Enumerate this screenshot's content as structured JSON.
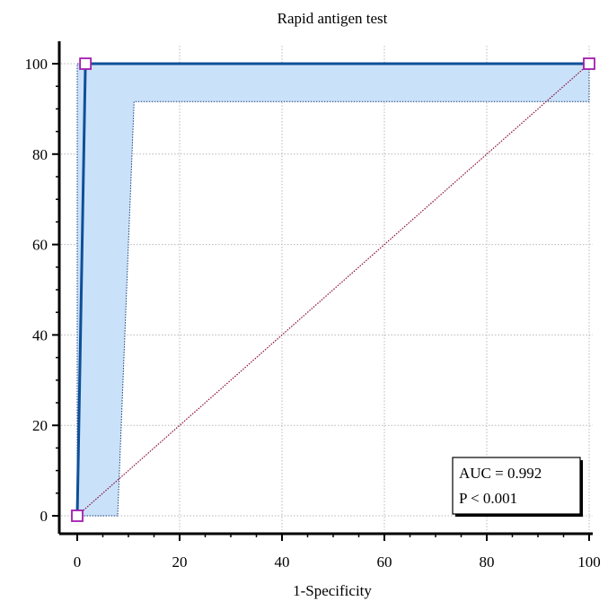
{
  "chart_data": {
    "type": "line",
    "title": "Rapid antigen test",
    "xlabel": "1-Specificity",
    "ylabel": "",
    "xlim": [
      0,
      100
    ],
    "ylim": [
      0,
      100
    ],
    "xticks": [
      0,
      20,
      40,
      60,
      80,
      100
    ],
    "yticks": [
      0,
      20,
      40,
      60,
      80,
      100
    ],
    "grid": true,
    "series": [
      {
        "type": "roc",
        "points": [
          {
            "x": 0,
            "y": 0
          },
          {
            "x": 1.6,
            "y": 100
          },
          {
            "x": 100,
            "y": 100
          }
        ]
      },
      {
        "type": "reference-diagonal",
        "points": [
          {
            "x": 0,
            "y": 0
          },
          {
            "x": 100,
            "y": 100
          }
        ]
      }
    ],
    "confidence_band": {
      "upper": [
        {
          "x": 0,
          "y": 0
        },
        {
          "x": 0,
          "y": 100
        },
        {
          "x": 100,
          "y": 100
        }
      ],
      "lower": [
        {
          "x": 7.9,
          "y": 0
        },
        {
          "x": 11.1,
          "y": 91.6
        },
        {
          "x": 100,
          "y": 91.6
        }
      ]
    },
    "annotations": {
      "auc": "AUC = 0.992",
      "p": "P < 0.001"
    },
    "colors": {
      "roc_line": "#0f4f98",
      "band_fill": "#c9e2fa",
      "band_edge": "#1a3e78",
      "diagonal": "#8b0a3c",
      "marker": "#a21caf",
      "grid": "#b8b8b8"
    }
  }
}
